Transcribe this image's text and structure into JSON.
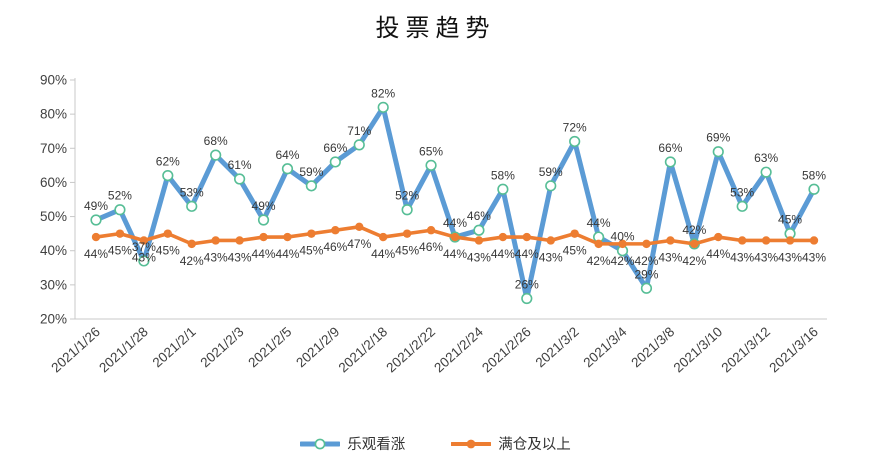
{
  "title": "投票趋势",
  "colors": {
    "blue": "#5B9BD5",
    "orange": "#ED7D31",
    "marker_ring": "#57BE96",
    "axis": "#C8C8C8",
    "text": "#404040"
  },
  "legend": [
    {
      "id": "optimistic",
      "label": "乐观看涨"
    },
    {
      "id": "full-position",
      "label": "满仓及以上"
    }
  ],
  "chart_data": {
    "type": "line",
    "title": "投票趋势",
    "xlabel": "",
    "ylabel": "",
    "ylim": [
      20,
      90
    ],
    "grid": false,
    "legend_position": "bottom",
    "y_ticks": [
      "20%",
      "30%",
      "40%",
      "50%",
      "60%",
      "70%",
      "80%",
      "90%"
    ],
    "x_tick_labels": [
      "2021/1/26",
      "2021/1/28",
      "2021/2/1",
      "2021/2/3",
      "2021/2/5",
      "2021/2/9",
      "2021/2/18",
      "2021/2/22",
      "2021/2/24",
      "2021/2/26",
      "2021/3/2",
      "2021/3/4",
      "2021/3/8",
      "2021/3/10",
      "2021/3/12",
      "2021/3/16"
    ],
    "x_tick_every_n_points": 2,
    "series": [
      {
        "id": "optimistic",
        "name": "乐观看涨",
        "color": "#5B9BD5",
        "marker": "open-circle",
        "values": [
          49,
          52,
          37,
          62,
          53,
          68,
          61,
          49,
          64,
          59,
          66,
          71,
          82,
          52,
          65,
          44,
          46,
          58,
          26,
          59,
          72,
          44,
          40,
          29,
          66,
          42,
          69,
          53,
          63,
          45,
          58
        ]
      },
      {
        "id": "full-position",
        "name": "满仓及以上",
        "color": "#ED7D31",
        "marker": "filled-circle",
        "values": [
          44,
          45,
          43,
          45,
          42,
          43,
          43,
          44,
          44,
          45,
          46,
          47,
          44,
          45,
          46,
          44,
          43,
          44,
          44,
          43,
          45,
          42,
          42,
          42,
          43,
          42,
          44,
          43,
          43,
          43,
          43
        ]
      }
    ]
  }
}
